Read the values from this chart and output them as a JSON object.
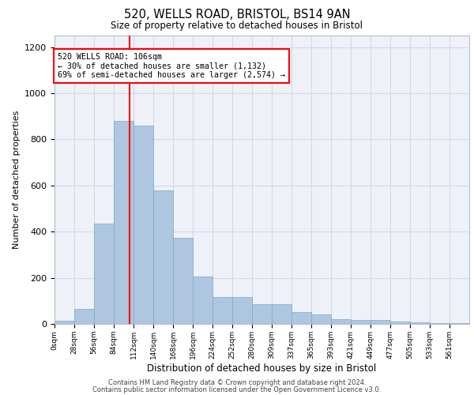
{
  "title_line1": "520, WELLS ROAD, BRISTOL, BS14 9AN",
  "title_line2": "Size of property relative to detached houses in Bristol",
  "xlabel": "Distribution of detached houses by size in Bristol",
  "ylabel": "Number of detached properties",
  "bin_labels": [
    "0sqm",
    "28sqm",
    "56sqm",
    "84sqm",
    "112sqm",
    "140sqm",
    "168sqm",
    "196sqm",
    "224sqm",
    "252sqm",
    "280sqm",
    "309sqm",
    "337sqm",
    "365sqm",
    "393sqm",
    "421sqm",
    "449sqm",
    "477sqm",
    "505sqm",
    "533sqm",
    "561sqm"
  ],
  "bar_values": [
    12,
    65,
    435,
    880,
    860,
    578,
    375,
    205,
    115,
    115,
    85,
    85,
    50,
    40,
    22,
    18,
    18,
    10,
    8,
    3,
    3
  ],
  "bar_color": "#aec6e0",
  "bar_edge_color": "#7aaac8",
  "grid_color": "#d0d8e8",
  "vline_x": 106,
  "vline_color": "red",
  "annotation_text": "520 WELLS ROAD: 106sqm\n← 30% of detached houses are smaller (1,132)\n69% of semi-detached houses are larger (2,574) →",
  "annotation_box_color": "white",
  "annotation_box_edge_color": "red",
  "ylim": [
    0,
    1250
  ],
  "yticks": [
    0,
    200,
    400,
    600,
    800,
    1000,
    1200
  ],
  "footer_line1": "Contains HM Land Registry data © Crown copyright and database right 2024.",
  "footer_line2": "Contains public sector information licensed under the Open Government Licence v3.0.",
  "background_color": "#eef2f8"
}
